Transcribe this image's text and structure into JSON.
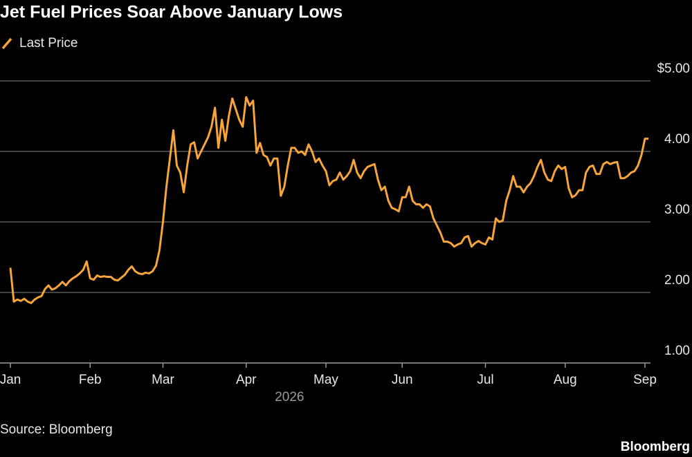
{
  "chart_data": {
    "type": "line",
    "title": "Jet Fuel Prices Soar Above January Lows",
    "series": [
      {
        "name": "Last Price",
        "color": "#f7a43a",
        "values": [
          2.35,
          1.87,
          1.9,
          1.88,
          1.91,
          1.87,
          1.85,
          1.9,
          1.93,
          1.95,
          2.05,
          2.1,
          2.04,
          2.06,
          2.1,
          2.15,
          2.1,
          2.16,
          2.2,
          2.23,
          2.27,
          2.32,
          2.44,
          2.2,
          2.18,
          2.24,
          2.22,
          2.23,
          2.22,
          2.22,
          2.18,
          2.17,
          2.21,
          2.25,
          2.32,
          2.37,
          2.3,
          2.27,
          2.26,
          2.28,
          2.27,
          2.3,
          2.38,
          2.6,
          3.0,
          3.5,
          3.9,
          4.3,
          3.8,
          3.7,
          3.42,
          3.8,
          4.1,
          4.13,
          3.9,
          4.0,
          4.1,
          4.2,
          4.35,
          4.62,
          4.05,
          4.45,
          4.15,
          4.5,
          4.75,
          4.6,
          4.45,
          4.35,
          4.77,
          4.65,
          4.72,
          3.98,
          4.12,
          3.95,
          3.92,
          3.8,
          3.9,
          3.9,
          3.37,
          3.5,
          3.8,
          4.05,
          4.05,
          3.98,
          4.0,
          3.95,
          4.1,
          4.0,
          3.85,
          3.9,
          3.8,
          3.72,
          3.52,
          3.58,
          3.6,
          3.7,
          3.6,
          3.65,
          3.72,
          3.88,
          3.7,
          3.62,
          3.72,
          3.78,
          3.8,
          3.82,
          3.6,
          3.45,
          3.5,
          3.3,
          3.2,
          3.18,
          3.15,
          3.35,
          3.35,
          3.5,
          3.3,
          3.25,
          3.25,
          3.2,
          3.25,
          3.22,
          3.05,
          2.95,
          2.85,
          2.72,
          2.72,
          2.7,
          2.65,
          2.68,
          2.7,
          2.78,
          2.8,
          2.65,
          2.7,
          2.73,
          2.7,
          2.68,
          2.78,
          2.75,
          3.05,
          3.0,
          3.02,
          3.3,
          3.45,
          3.65,
          3.5,
          3.5,
          3.42,
          3.5,
          3.55,
          3.65,
          3.78,
          3.88,
          3.7,
          3.6,
          3.58,
          3.72,
          3.8,
          3.75,
          3.78,
          3.48,
          3.35,
          3.38,
          3.45,
          3.45,
          3.7,
          3.78,
          3.8,
          3.68,
          3.68,
          3.82,
          3.85,
          3.82,
          3.84,
          3.85,
          3.62,
          3.62,
          3.65,
          3.7,
          3.72,
          3.8,
          3.95,
          4.18,
          4.18
        ]
      }
    ],
    "xlim": [
      0,
      184
    ],
    "xticks": [
      {
        "value": 0,
        "label": "Jan"
      },
      {
        "value": 23,
        "label": "Feb"
      },
      {
        "value": 44,
        "label": "Mar"
      },
      {
        "value": 68,
        "label": "Apr"
      },
      {
        "value": 91,
        "label": "May"
      },
      {
        "value": 113,
        "label": "Jun"
      },
      {
        "value": 137,
        "label": "Jul"
      },
      {
        "value": 160,
        "label": "Aug"
      },
      {
        "value": 183,
        "label": "Sep"
      }
    ],
    "x_label": "2026",
    "ylim": [
      1,
      5
    ],
    "yticks": [
      {
        "value": 1,
        "label": "1.00"
      },
      {
        "value": 2,
        "label": "2.00"
      },
      {
        "value": 3,
        "label": "3.00"
      },
      {
        "value": 4,
        "label": "4.00"
      },
      {
        "value": 5,
        "label": "$5.00"
      }
    ],
    "grid": true
  },
  "source": "Source: Bloomberg",
  "logo": "Bloomberg"
}
